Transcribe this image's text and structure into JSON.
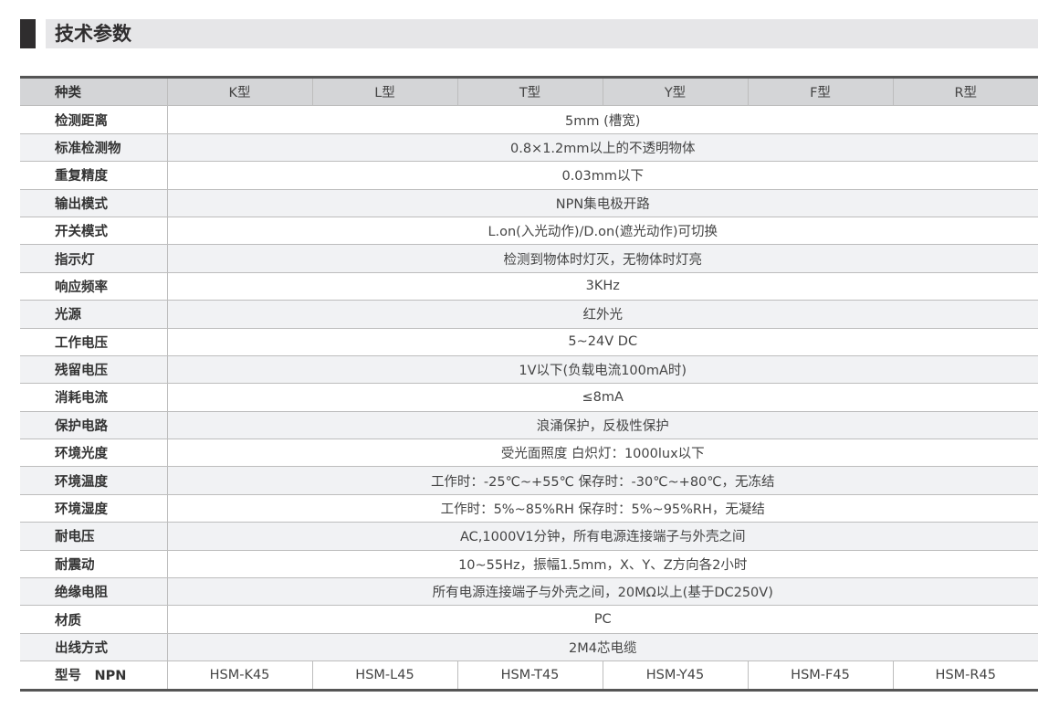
{
  "section_title": "技术参数",
  "header": {
    "label": "种类",
    "types": [
      "K型",
      "L型",
      "T型",
      "Y型",
      "F型",
      "R型"
    ]
  },
  "rows": [
    {
      "label": "检测距离",
      "value": "5mm (槽宽)"
    },
    {
      "label": "标准检测物",
      "value": "0.8×1.2mm以上的不透明物体"
    },
    {
      "label": "重复精度",
      "value": "0.03mm以下"
    },
    {
      "label": "输出模式",
      "value": "NPN集电极开路"
    },
    {
      "label": "开关模式",
      "value": "L.on(入光动作)/D.on(遮光动作)可切换"
    },
    {
      "label": "指示灯",
      "value": "检测到物体时灯灭，无物体时灯亮"
    },
    {
      "label": "响应频率",
      "value": "3KHz"
    },
    {
      "label": "光源",
      "value": "红外光"
    },
    {
      "label": "工作电压",
      "value": "5~24V DC"
    },
    {
      "label": "残留电压",
      "value": "1V以下(负载电流100mA时)"
    },
    {
      "label": "消耗电流",
      "value": "≤8mA"
    },
    {
      "label": "保护电路",
      "value": "浪涌保护，反极性保护"
    },
    {
      "label": "环境光度",
      "value": "受光面照度 白炽灯：1000lux以下"
    },
    {
      "label": "环境温度",
      "value": "工作时：-25℃~+55℃  保存时：-30℃~+80℃，无冻结"
    },
    {
      "label": "环境湿度",
      "value": "工作时：5%~85%RH  保存时：5%~95%RH，无凝结"
    },
    {
      "label": "耐电压",
      "value": "AC,1000V1分钟，所有电源连接端子与外壳之间"
    },
    {
      "label": "耐震动",
      "value": "10~55Hz，振幅1.5mm，X、Y、Z方向各2小时"
    },
    {
      "label": "绝缘电阻",
      "value": "所有电源连接端子与外壳之间，20MΩ以上(基于DC250V)"
    },
    {
      "label": "材质",
      "value": "PC"
    },
    {
      "label": "出线方式",
      "value": "2M4芯电缆"
    }
  ],
  "model_row": {
    "label": "型号　NPN",
    "models": [
      "HSM-K45",
      "HSM-L45",
      "HSM-T45",
      "HSM-Y45",
      "HSM-F45",
      "HSM-R45"
    ]
  }
}
